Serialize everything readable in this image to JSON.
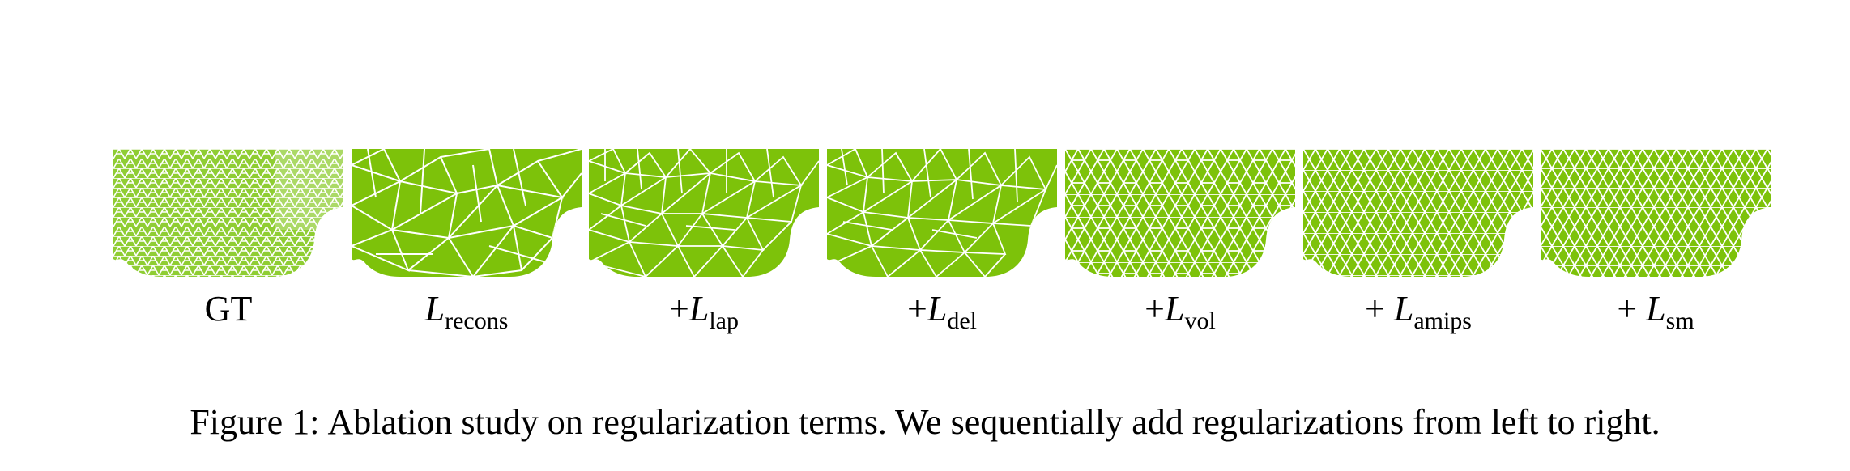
{
  "figure": {
    "panels": [
      {
        "id": "gt",
        "plus": "",
        "symbol": "GT",
        "subscript": "",
        "italic": false,
        "mesh_style": "fine"
      },
      {
        "id": "recons",
        "plus": "",
        "symbol": "L",
        "subscript": "recons",
        "italic": true,
        "mesh_style": "coarse-irregular"
      },
      {
        "id": "lap",
        "plus": "+",
        "symbol": "L",
        "subscript": "lap",
        "italic": true,
        "mesh_style": "irregular"
      },
      {
        "id": "del",
        "plus": "+",
        "symbol": "L",
        "subscript": "del",
        "italic": true,
        "mesh_style": "irregular"
      },
      {
        "id": "vol",
        "plus": "+",
        "symbol": "L",
        "subscript": "vol",
        "italic": true,
        "mesh_style": "uniform"
      },
      {
        "id": "amips",
        "plus": "+ ",
        "symbol": "L",
        "subscript": "amips",
        "italic": true,
        "mesh_style": "uniform"
      },
      {
        "id": "sm",
        "plus": "+ ",
        "symbol": "L",
        "subscript": "sm",
        "italic": true,
        "mesh_style": "uniform"
      }
    ],
    "caption": {
      "label": "Figure 1:",
      "text": "Ablation study on regularization terms. We sequentially add regularizations from left to right."
    },
    "colors": {
      "mesh_fill": "#7dc20a",
      "mesh_edge": "#ffffff",
      "gt_fill": "#9ad14a"
    }
  }
}
